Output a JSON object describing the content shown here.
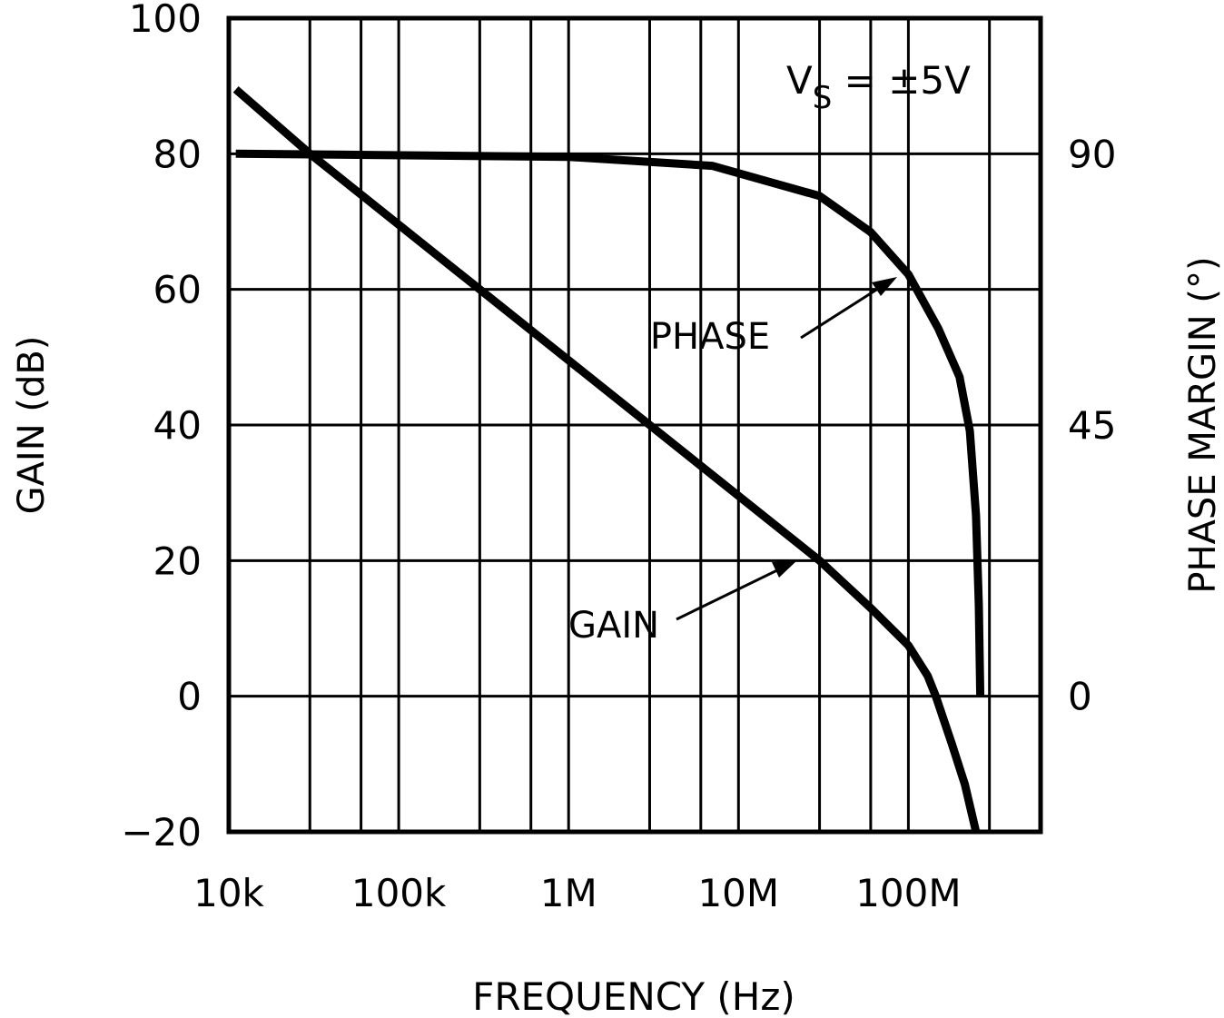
{
  "chart_data": {
    "type": "line",
    "xlabel": "FREQUENCY (Hz)",
    "ylabel": "GAIN (dB)",
    "y2label": "PHASE MARGIN (°)",
    "xscale": "log",
    "xlim": [
      10000,
      600000000
    ],
    "ylim": [
      -20,
      100
    ],
    "y2lim": [
      -22.5,
      112.5
    ],
    "x_ticks": [
      {
        "v": 10000,
        "label": "10k"
      },
      {
        "v": 100000,
        "label": "100k"
      },
      {
        "v": 1000000,
        "label": "1M"
      },
      {
        "v": 10000000,
        "label": "10M"
      },
      {
        "v": 100000000,
        "label": "100M"
      }
    ],
    "x_grid": [
      10000,
      30000,
      60000,
      100000,
      300000,
      600000,
      1000000,
      3000000,
      6000000,
      10000000,
      30000000,
      60000000,
      100000000,
      300000000,
      600000000
    ],
    "y_ticks": [
      {
        "v": 100,
        "label": "100"
      },
      {
        "v": 80,
        "label": "80"
      },
      {
        "v": 60,
        "label": "60"
      },
      {
        "v": 40,
        "label": "40"
      },
      {
        "v": 20,
        "label": "20"
      },
      {
        "v": 0,
        "label": "0"
      },
      {
        "v": -20,
        "label": "-20"
      }
    ],
    "y2_ticks": [
      {
        "v": 90,
        "label": "90"
      },
      {
        "v": 45,
        "label": "45"
      },
      {
        "v": 0,
        "label": "0"
      }
    ],
    "grid": true,
    "annotation": {
      "text_main": "V",
      "text_sub": "S",
      "text_rest": " = ±5V"
    },
    "series": [
      {
        "name": "GAIN",
        "axis": "left",
        "points": [
          [
            11000,
            89.5
          ],
          [
            30000,
            80
          ],
          [
            300000,
            60
          ],
          [
            3000000,
            40
          ],
          [
            30000000,
            20
          ],
          [
            60000000,
            13
          ],
          [
            100000000,
            7.5
          ],
          [
            130000000,
            3
          ],
          [
            145000000,
            0
          ],
          [
            180000000,
            -7
          ],
          [
            215000000,
            -13
          ],
          [
            250000000,
            -20
          ]
        ]
      },
      {
        "name": "PHASE",
        "axis": "right",
        "points": [
          [
            11000,
            90
          ],
          [
            1000000,
            89.5
          ],
          [
            7000000,
            88
          ],
          [
            30000000,
            83
          ],
          [
            60000000,
            77
          ],
          [
            100000000,
            70
          ],
          [
            150000000,
            61
          ],
          [
            200000000,
            53
          ],
          [
            230000000,
            44
          ],
          [
            250000000,
            30
          ],
          [
            260000000,
            15
          ],
          [
            265000000,
            0
          ]
        ]
      }
    ]
  }
}
